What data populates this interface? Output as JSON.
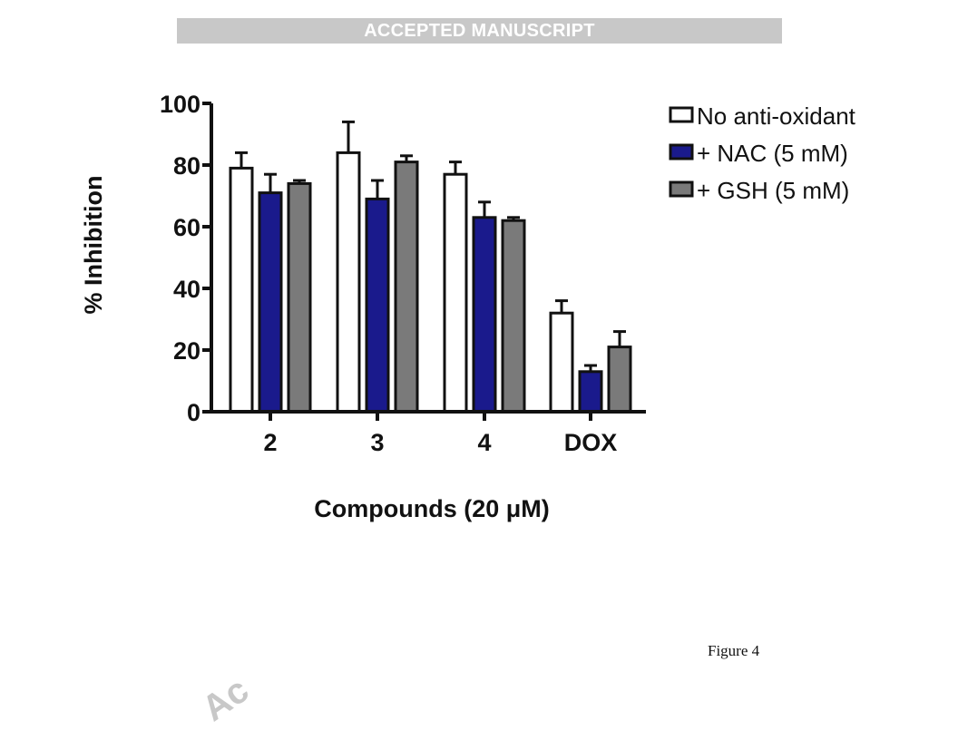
{
  "banner": {
    "text": "ACCEPTED MANUSCRIPT"
  },
  "caption": {
    "text": "Figure 4"
  },
  "watermark": {
    "text": "Ac"
  },
  "chart_data": {
    "type": "bar",
    "title": "",
    "xlabel": "Compounds (20 μM)",
    "ylabel": "% Inhibition",
    "ylim": [
      0,
      100
    ],
    "yticks": [
      0,
      20,
      40,
      60,
      80,
      100
    ],
    "categories": [
      "2",
      "3",
      "4",
      "DOX"
    ],
    "legend_position": "top-right",
    "grid": false,
    "error_bars": true,
    "series": [
      {
        "name": "No anti-oxidant",
        "color": "#ffffff",
        "values": [
          79,
          84,
          77,
          32
        ],
        "errors": [
          5,
          10,
          4,
          4
        ]
      },
      {
        "name": "+ NAC (5 mM)",
        "color": "#1a1a8c",
        "values": [
          71,
          69,
          63,
          13
        ],
        "errors": [
          6,
          6,
          5,
          2
        ]
      },
      {
        "name": "+ GSH (5 mM)",
        "color": "#7a7a7a",
        "values": [
          74,
          81,
          62,
          21
        ],
        "errors": [
          1,
          2,
          1,
          5
        ]
      }
    ]
  }
}
